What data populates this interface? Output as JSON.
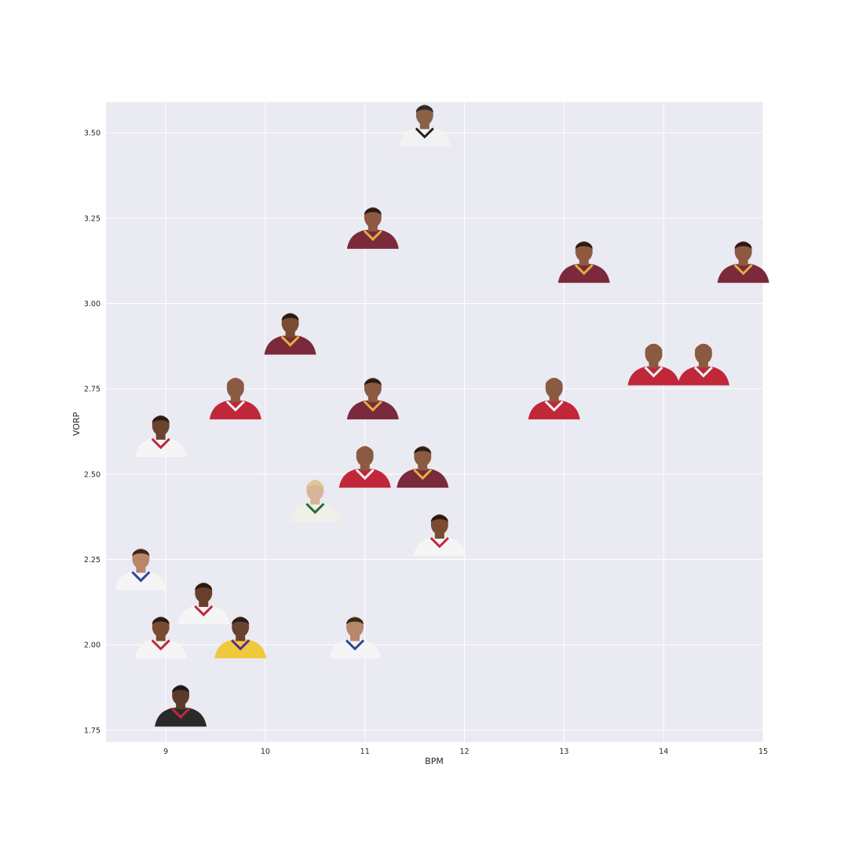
{
  "chart_data": {
    "type": "scatter",
    "xlabel": "BPM",
    "ylabel": "VORP",
    "xlim": [
      8.4,
      15.0
    ],
    "ylim": [
      1.715,
      3.59
    ],
    "xticks": [
      9,
      10,
      11,
      12,
      13,
      14,
      15
    ],
    "yticks": [
      1.75,
      2.0,
      2.25,
      2.5,
      2.75,
      3.0,
      3.25,
      3.5
    ],
    "grid": true,
    "background": "#eaeaf2",
    "grid_color": "#ffffff",
    "markers": "player headshot images",
    "points": [
      {
        "x": 11.6,
        "y": 3.52,
        "jersey": "#f2f2f2",
        "trim": "#222222",
        "skin": "#8a6048",
        "hair": "#2a2a2a"
      },
      {
        "x": 11.08,
        "y": 3.22,
        "jersey": "#7a2a3a",
        "trim": "#e0b040",
        "skin": "#8c5a40",
        "hair": "#2a1c14"
      },
      {
        "x": 13.2,
        "y": 3.12,
        "jersey": "#7a2a3a",
        "trim": "#e0b040",
        "skin": "#8c5a40",
        "hair": "#2a1c14"
      },
      {
        "x": 14.8,
        "y": 3.12,
        "jersey": "#7a2a3a",
        "trim": "#e0b040",
        "skin": "#8c5a40",
        "hair": "#2a1c14"
      },
      {
        "x": 10.25,
        "y": 2.91,
        "jersey": "#7a2a3a",
        "trim": "#e0b040",
        "skin": "#7a4a32",
        "hair": "#2a1c14"
      },
      {
        "x": 13.9,
        "y": 2.82,
        "jersey": "#c0283a",
        "trim": "#f2f2f2",
        "skin": "#8a5a42",
        "hair": "#8a5a42"
      },
      {
        "x": 14.4,
        "y": 2.82,
        "jersey": "#c0283a",
        "trim": "#f2f2f2",
        "skin": "#8a5a42",
        "hair": "#8a5a42"
      },
      {
        "x": 9.7,
        "y": 2.72,
        "jersey": "#c0283a",
        "trim": "#f2f2f2",
        "skin": "#8a5a42",
        "hair": "#8a5a42"
      },
      {
        "x": 11.08,
        "y": 2.72,
        "jersey": "#7a2a3a",
        "trim": "#e0b040",
        "skin": "#8c5a40",
        "hair": "#2a1c14"
      },
      {
        "x": 12.9,
        "y": 2.72,
        "jersey": "#c0283a",
        "trim": "#f2f2f2",
        "skin": "#8a5a42",
        "hair": "#8a5a42"
      },
      {
        "x": 8.95,
        "y": 2.61,
        "jersey": "#f5f5f5",
        "trim": "#c0283a",
        "skin": "#6a4230",
        "hair": "#2a1c14"
      },
      {
        "x": 11.0,
        "y": 2.52,
        "jersey": "#c0283a",
        "trim": "#f2f2f2",
        "skin": "#8a5a42",
        "hair": "#8a5a42"
      },
      {
        "x": 11.58,
        "y": 2.52,
        "jersey": "#7a2a3a",
        "trim": "#e0b040",
        "skin": "#8c5a40",
        "hair": "#2a1c14"
      },
      {
        "x": 10.5,
        "y": 2.42,
        "jersey": "#f0f0e8",
        "trim": "#2a6a3a",
        "skin": "#d8b49a",
        "hair": "#e0c890"
      },
      {
        "x": 11.75,
        "y": 2.32,
        "jersey": "#f5f5f5",
        "trim": "#c0283a",
        "skin": "#7a4a32",
        "hair": "#2a1c14"
      },
      {
        "x": 8.75,
        "y": 2.22,
        "jersey": "#f5f5f5",
        "trim": "#2a4a9a",
        "skin": "#b8876a",
        "hair": "#3a2a1c"
      },
      {
        "x": 9.38,
        "y": 2.12,
        "jersey": "#f5f5f5",
        "trim": "#c0283a",
        "skin": "#6a3e2c",
        "hair": "#2a1c14"
      },
      {
        "x": 8.95,
        "y": 2.02,
        "jersey": "#f5f5f5",
        "trim": "#c0283a",
        "skin": "#7a4a32",
        "hair": "#2a1c14"
      },
      {
        "x": 9.75,
        "y": 2.02,
        "jersey": "#f0c83c",
        "trim": "#5a2a8a",
        "skin": "#6a4230",
        "hair": "#2a1c14"
      },
      {
        "x": 10.9,
        "y": 2.02,
        "jersey": "#f5f5f5",
        "trim": "#2a4a9a",
        "skin": "#b8876a",
        "hair": "#3a2a1c"
      },
      {
        "x": 9.15,
        "y": 1.82,
        "jersey": "#2a2a2a",
        "trim": "#c0283a",
        "skin": "#5a3a2a",
        "hair": "#1a1a1a"
      }
    ]
  }
}
